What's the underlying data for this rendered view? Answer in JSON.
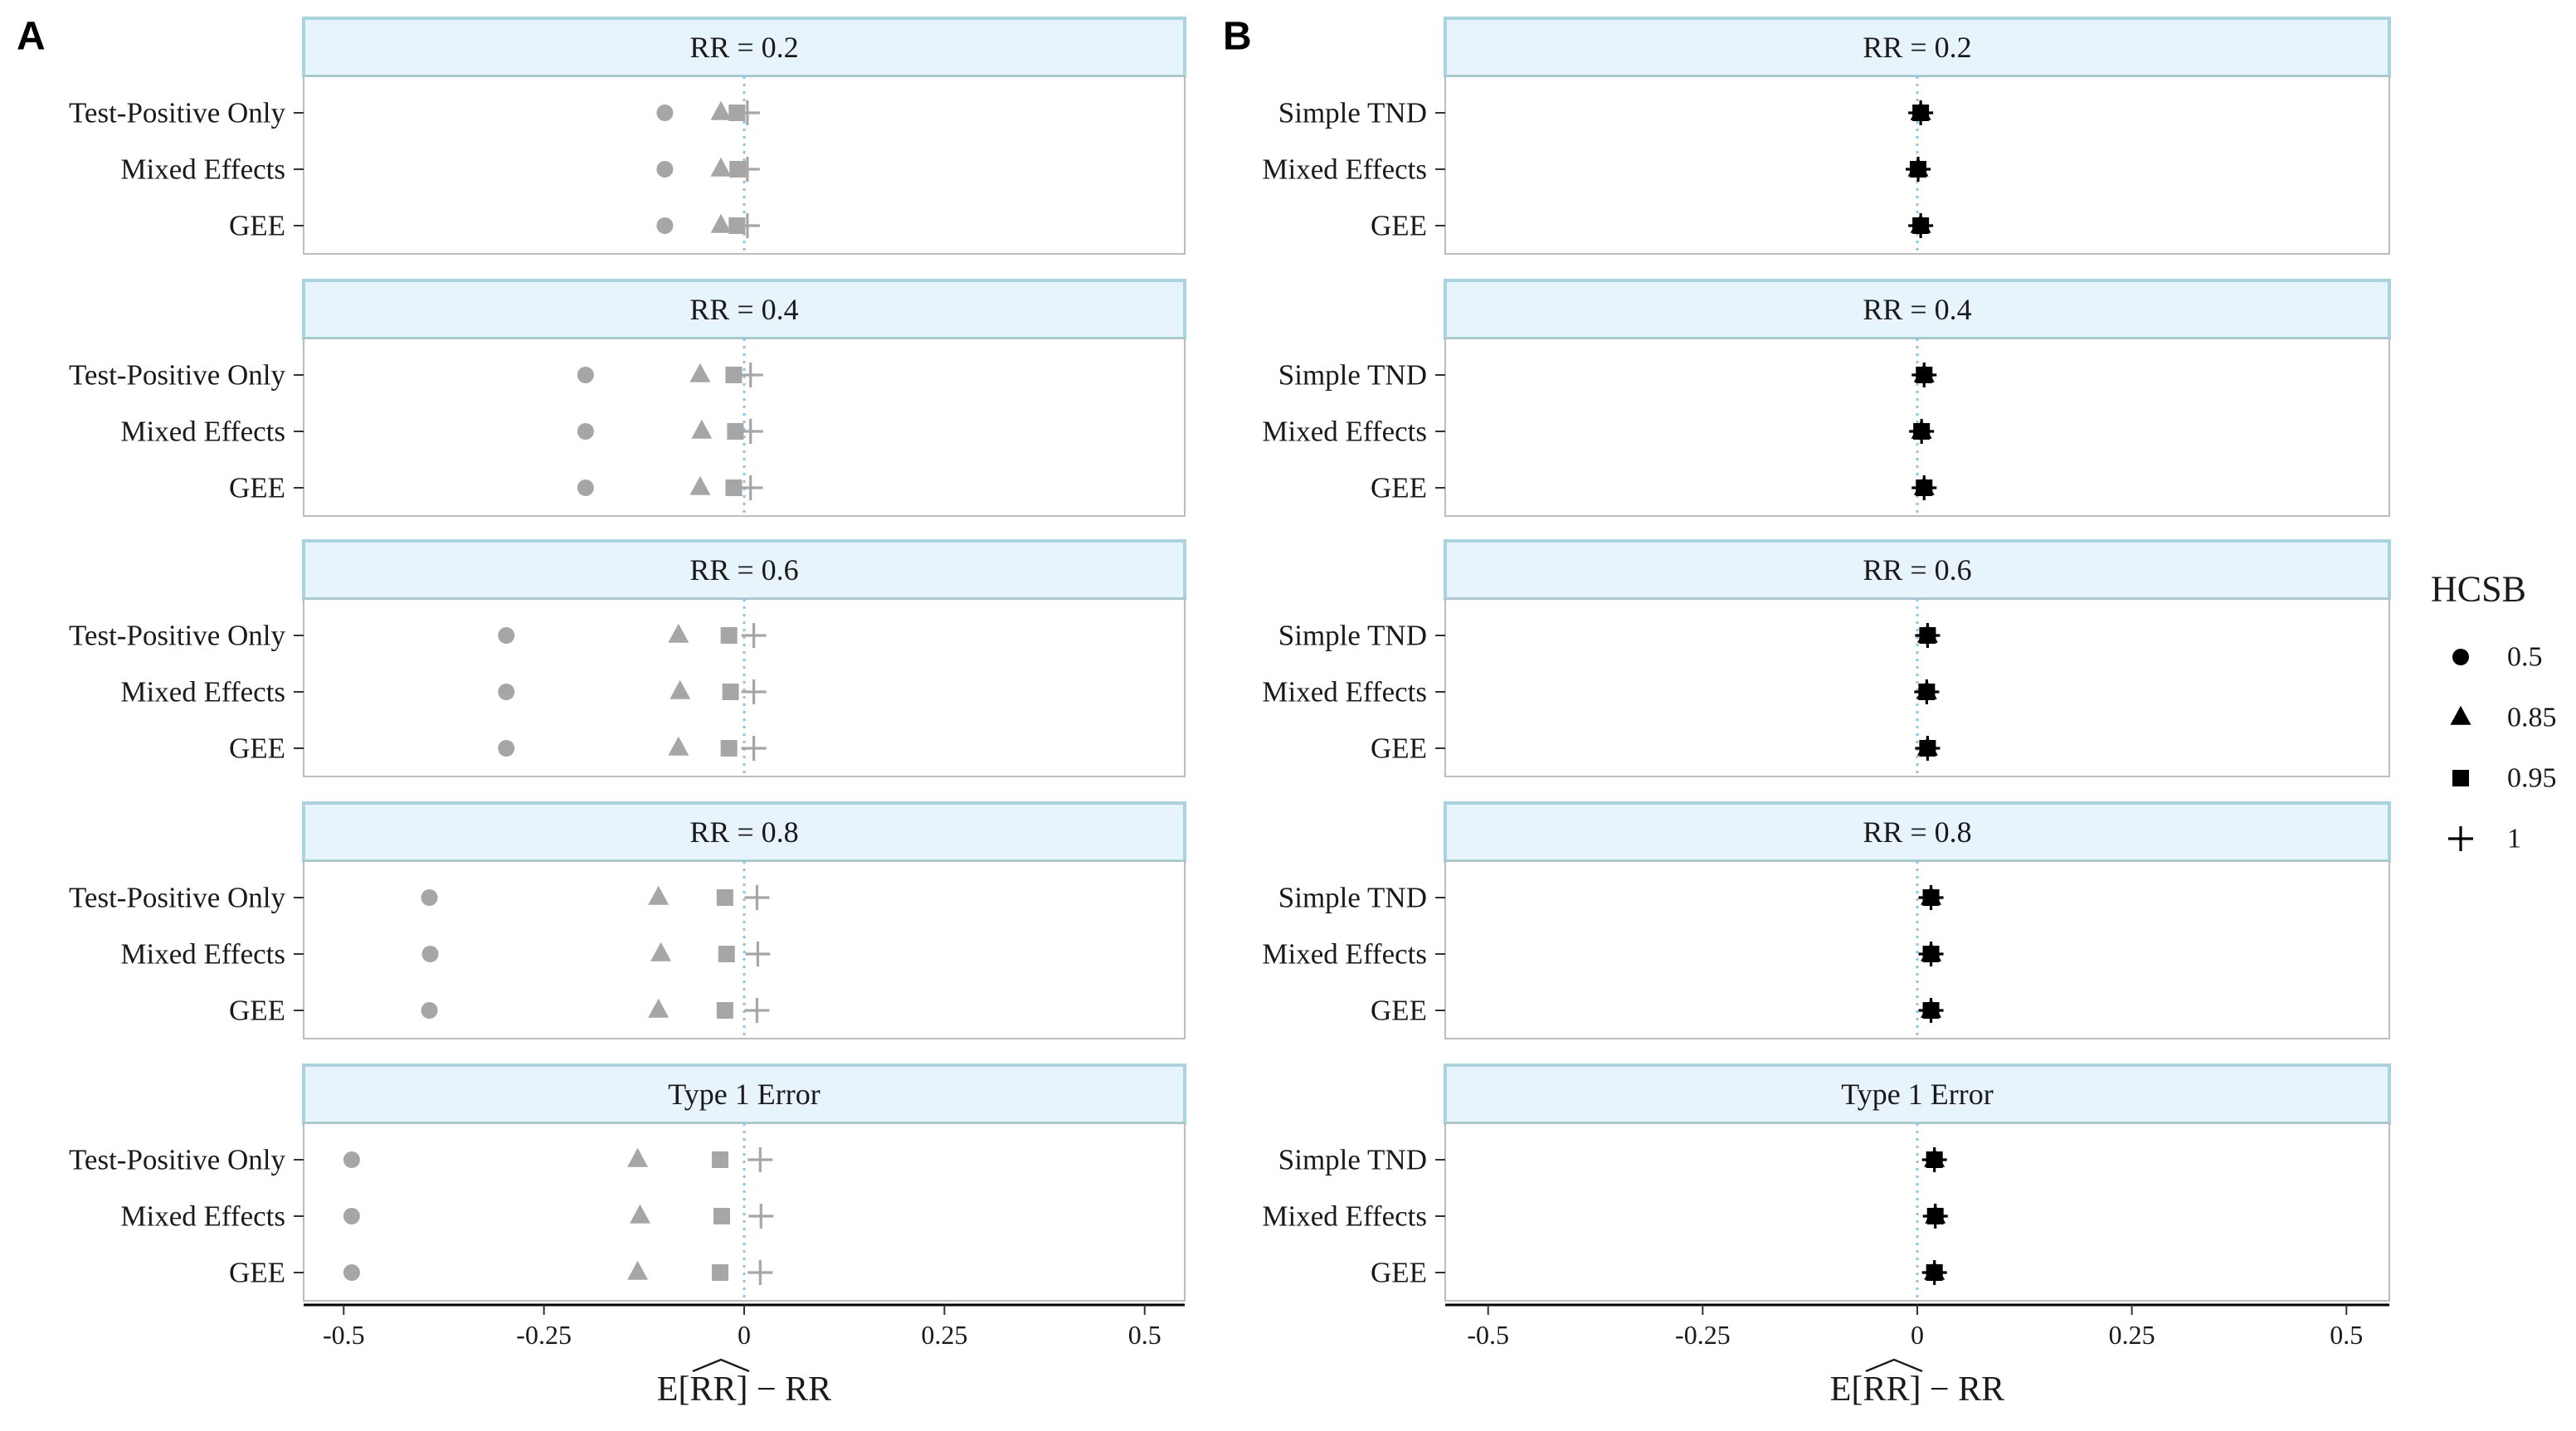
{
  "chart_data": [
    {
      "type": "scatter",
      "panel_label": "A",
      "xlabel": "E[RR] − RR",
      "xlabel_hat": "RR",
      "xlabel_parts": [
        "E[",
        "RR",
        "] − RR"
      ],
      "xlim": [
        -0.55,
        0.55
      ],
      "x_ticks": [
        -0.5,
        -0.25,
        0,
        0.25,
        0.5
      ],
      "x_tick_labels": [
        "-0.5",
        "-0.25",
        "0",
        "0.25",
        "0.5"
      ],
      "reference_line": 0,
      "grid": false,
      "marker_color": "#a6a6a6",
      "facets": [
        {
          "title": "RR = 0.2",
          "rows": [
            {
              "method": "Test-Positive Only",
              "values": {
                "0.5": -0.099,
                "0.85": -0.029,
                "0.95": -0.009,
                "1": 0.004
              }
            },
            {
              "method": "Mixed Effects",
              "values": {
                "0.5": -0.099,
                "0.85": -0.029,
                "0.95": -0.008,
                "1": 0.004
              }
            },
            {
              "method": "GEE",
              "values": {
                "0.5": -0.099,
                "0.85": -0.029,
                "0.95": -0.009,
                "1": 0.004
              }
            }
          ]
        },
        {
          "title": "RR = 0.4",
          "rows": [
            {
              "method": "Test-Positive Only",
              "values": {
                "0.5": -0.198,
                "0.85": -0.055,
                "0.95": -0.013,
                "1": 0.008
              }
            },
            {
              "method": "Mixed Effects",
              "values": {
                "0.5": -0.198,
                "0.85": -0.053,
                "0.95": -0.011,
                "1": 0.008
              }
            },
            {
              "method": "GEE",
              "values": {
                "0.5": -0.198,
                "0.85": -0.055,
                "0.95": -0.013,
                "1": 0.008
              }
            }
          ]
        },
        {
          "title": "RR = 0.6",
          "rows": [
            {
              "method": "Test-Positive Only",
              "values": {
                "0.5": -0.297,
                "0.85": -0.082,
                "0.95": -0.019,
                "1": 0.012
              }
            },
            {
              "method": "Mixed Effects",
              "values": {
                "0.5": -0.297,
                "0.85": -0.08,
                "0.95": -0.017,
                "1": 0.012
              }
            },
            {
              "method": "GEE",
              "values": {
                "0.5": -0.297,
                "0.85": -0.082,
                "0.95": -0.019,
                "1": 0.012
              }
            }
          ]
        },
        {
          "title": "RR = 0.8",
          "rows": [
            {
              "method": "Test-Positive Only",
              "values": {
                "0.5": -0.393,
                "0.85": -0.107,
                "0.95": -0.024,
                "1": 0.016
              }
            },
            {
              "method": "Mixed Effects",
              "values": {
                "0.5": -0.392,
                "0.85": -0.104,
                "0.95": -0.022,
                "1": 0.017
              }
            },
            {
              "method": "GEE",
              "values": {
                "0.5": -0.393,
                "0.85": -0.107,
                "0.95": -0.024,
                "1": 0.016
              }
            }
          ]
        },
        {
          "title": "Type 1 Error",
          "rows": [
            {
              "method": "Test-Positive Only",
              "values": {
                "0.5": -0.49,
                "0.85": -0.133,
                "0.95": -0.03,
                "1": 0.02
              }
            },
            {
              "method": "Mixed Effects",
              "values": {
                "0.5": -0.49,
                "0.85": -0.13,
                "0.95": -0.028,
                "1": 0.021
              }
            },
            {
              "method": "GEE",
              "values": {
                "0.5": -0.49,
                "0.85": -0.133,
                "0.95": -0.03,
                "1": 0.02
              }
            }
          ]
        }
      ]
    },
    {
      "type": "scatter",
      "panel_label": "B",
      "xlabel": "E[RR] − RR",
      "xlabel_hat": "RR",
      "xlabel_parts": [
        "E[",
        "RR",
        "] − RR"
      ],
      "xlim": [
        -0.55,
        0.55
      ],
      "x_ticks": [
        -0.5,
        -0.25,
        0,
        0.25,
        0.5
      ],
      "x_tick_labels": [
        "-0.5",
        "-0.25",
        "0",
        "0.25",
        "0.5"
      ],
      "reference_line": 0,
      "grid": false,
      "marker_color": "#000000",
      "facets": [
        {
          "title": "RR = 0.2",
          "rows": [
            {
              "method": "Simple TND",
              "values": {
                "0.5": 0.004,
                "0.85": 0.004,
                "0.95": 0.004,
                "1": 0.004
              }
            },
            {
              "method": "Mixed Effects",
              "values": {
                "0.5": 0.001,
                "0.85": 0.001,
                "0.95": 0.001,
                "1": 0.001
              }
            },
            {
              "method": "GEE",
              "values": {
                "0.5": 0.004,
                "0.85": 0.004,
                "0.95": 0.004,
                "1": 0.004
              }
            }
          ]
        },
        {
          "title": "RR = 0.4",
          "rows": [
            {
              "method": "Simple TND",
              "values": {
                "0.5": 0.008,
                "0.85": 0.008,
                "0.95": 0.008,
                "1": 0.008
              }
            },
            {
              "method": "Mixed Effects",
              "values": {
                "0.5": 0.005,
                "0.85": 0.005,
                "0.95": 0.005,
                "1": 0.005
              }
            },
            {
              "method": "GEE",
              "values": {
                "0.5": 0.008,
                "0.85": 0.008,
                "0.95": 0.008,
                "1": 0.008
              }
            }
          ]
        },
        {
          "title": "RR = 0.6",
          "rows": [
            {
              "method": "Simple TND",
              "values": {
                "0.5": 0.012,
                "0.85": 0.012,
                "0.95": 0.012,
                "1": 0.012
              }
            },
            {
              "method": "Mixed Effects",
              "values": {
                "0.5": 0.011,
                "0.85": 0.011,
                "0.95": 0.011,
                "1": 0.011
              }
            },
            {
              "method": "GEE",
              "values": {
                "0.5": 0.012,
                "0.85": 0.012,
                "0.95": 0.012,
                "1": 0.012
              }
            }
          ]
        },
        {
          "title": "RR = 0.8",
          "rows": [
            {
              "method": "Simple TND",
              "values": {
                "0.5": 0.016,
                "0.85": 0.016,
                "0.95": 0.016,
                "1": 0.016
              }
            },
            {
              "method": "Mixed Effects",
              "values": {
                "0.5": 0.016,
                "0.85": 0.016,
                "0.95": 0.016,
                "1": 0.016
              }
            },
            {
              "method": "GEE",
              "values": {
                "0.5": 0.016,
                "0.85": 0.016,
                "0.95": 0.016,
                "1": 0.016
              }
            }
          ]
        },
        {
          "title": "Type 1 Error",
          "rows": [
            {
              "method": "Simple TND",
              "values": {
                "0.5": 0.02,
                "0.85": 0.02,
                "0.95": 0.02,
                "1": 0.02
              }
            },
            {
              "method": "Mixed Effects",
              "values": {
                "0.5": 0.021,
                "0.85": 0.021,
                "0.95": 0.021,
                "1": 0.021
              }
            },
            {
              "method": "GEE",
              "values": {
                "0.5": 0.02,
                "0.85": 0.02,
                "0.95": 0.02,
                "1": 0.02
              }
            }
          ]
        }
      ]
    }
  ],
  "legend": {
    "title": "HCSB",
    "placement": "right",
    "items": [
      {
        "label": "0.5",
        "shape": "circle"
      },
      {
        "label": "0.85",
        "shape": "triangle"
      },
      {
        "label": "0.95",
        "shape": "square"
      },
      {
        "label": "1",
        "shape": "plus"
      }
    ]
  },
  "colors": {
    "strip_fill": "#e8f4fc",
    "strip_border": "#a8d4e0",
    "panel_border": "#bdbdbd",
    "reference_line": "#8ec3e6",
    "axis_line": "#000000",
    "text": "#1a1a1a"
  }
}
